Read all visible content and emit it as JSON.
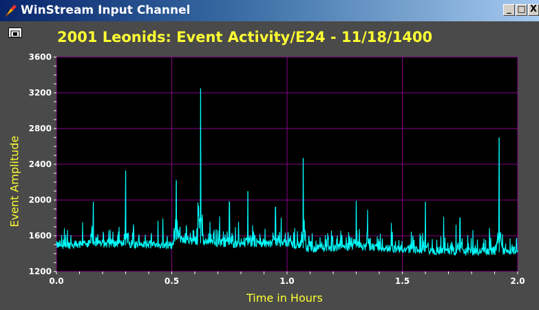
{
  "window": {
    "title": "WinStream Input Channel",
    "minimize_label": "_",
    "maximize_label": "□",
    "close_label": "X"
  },
  "colors": {
    "plot_background": "#000000",
    "grid": "#8b008b",
    "trace": "#00ffff",
    "title": "#ffff33",
    "panel": "#4a4a4a"
  },
  "chart_data": {
    "type": "line",
    "title": "2001 Leonids: Event Activity/E24 - 11/18/1400",
    "xlabel": "Time in Hours",
    "ylabel": "Event Amplitude",
    "xlim": [
      0.0,
      2.0
    ],
    "ylim": [
      1200,
      3600
    ],
    "x_ticks": [
      "0.0",
      "0.5",
      "1.0",
      "1.5",
      "2.0"
    ],
    "y_ticks": [
      "1200",
      "1600",
      "2000",
      "2400",
      "2800",
      "3200",
      "3600"
    ],
    "grid": true,
    "series": [
      {
        "baseline": [
          [
            0.0,
            1480
          ],
          [
            0.2,
            1500
          ],
          [
            0.5,
            1480
          ],
          [
            0.52,
            1560
          ],
          [
            0.6,
            1520
          ],
          [
            0.8,
            1490
          ],
          [
            1.0,
            1510
          ],
          [
            1.1,
            1440
          ],
          [
            1.3,
            1470
          ],
          [
            1.6,
            1420
          ],
          [
            1.8,
            1410
          ],
          [
            2.0,
            1420
          ]
        ],
        "spikes": [
          [
            0.16,
            1980
          ],
          [
            0.3,
            2330
          ],
          [
            0.52,
            2220
          ],
          [
            0.625,
            3250
          ],
          [
            0.75,
            1980
          ],
          [
            0.83,
            2100
          ],
          [
            0.95,
            1920
          ],
          [
            1.07,
            2470
          ],
          [
            1.3,
            1990
          ],
          [
            1.6,
            1980
          ],
          [
            1.75,
            1800
          ],
          [
            1.92,
            2700
          ]
        ]
      }
    ]
  }
}
